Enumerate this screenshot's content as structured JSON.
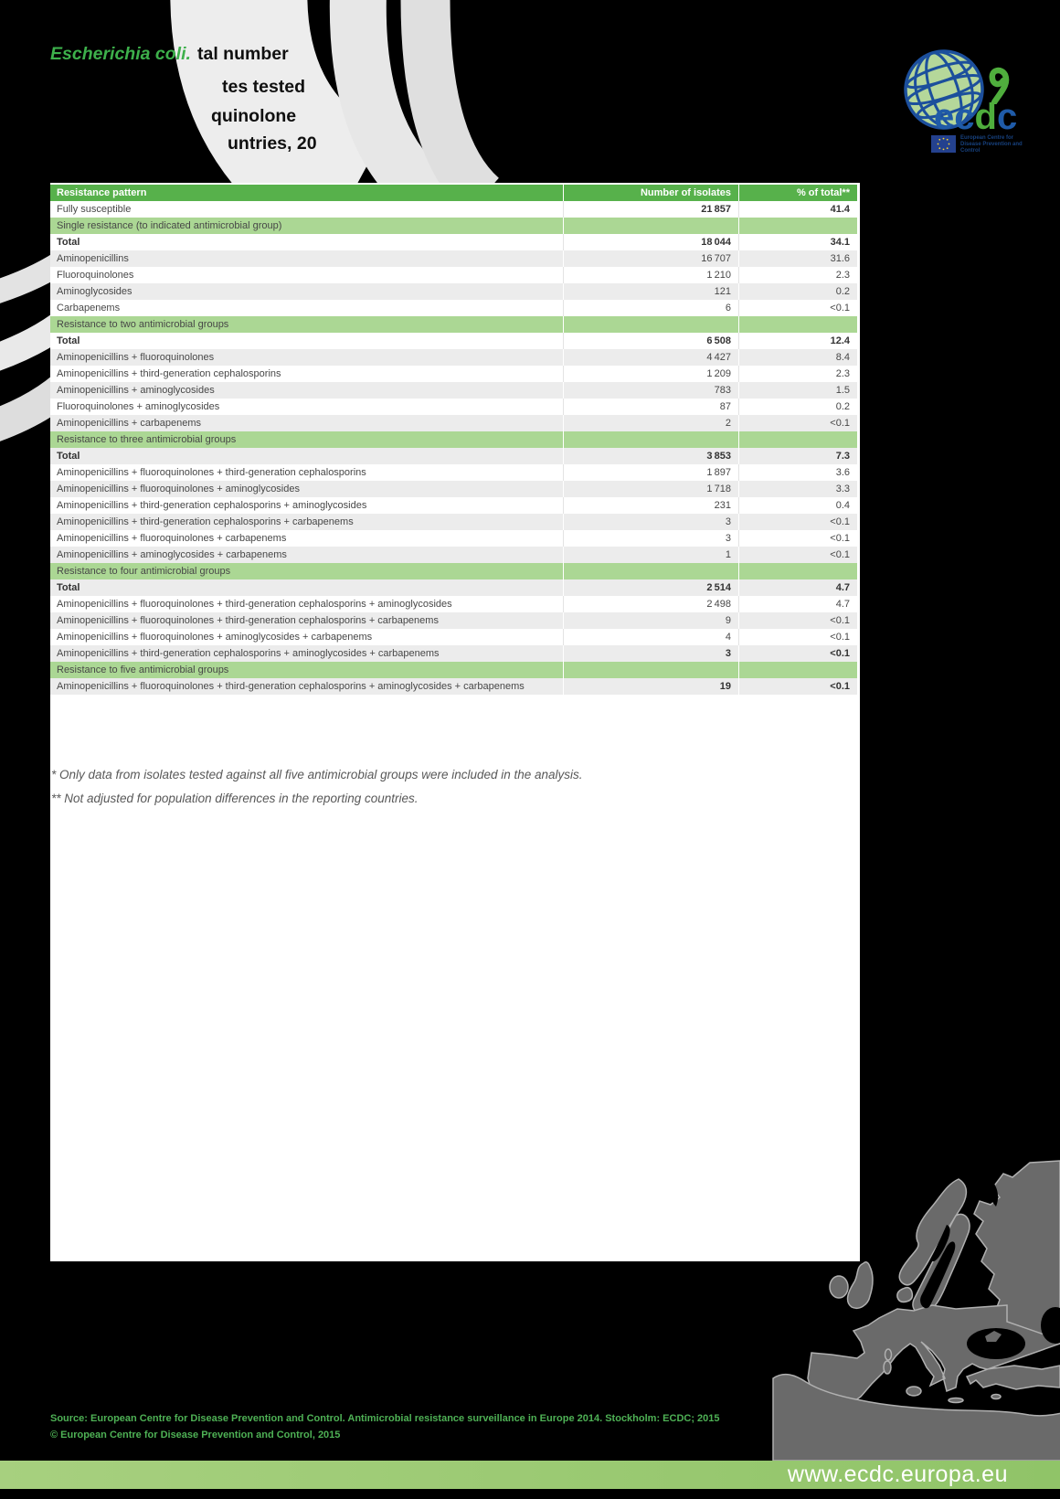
{
  "header": {
    "species_label": "Escherichia coli.",
    "title_fragments": [
      "tal number",
      "tes tested",
      "quinolone",
      "untries, 20"
    ],
    "logo": {
      "letters": [
        "e",
        "c",
        "d",
        "c"
      ],
      "caption": "European Centre for Disease Prevention and Control"
    }
  },
  "table": {
    "columns": [
      "Resistance pattern",
      "Number of isolates",
      "% of total**"
    ],
    "rows": [
      {
        "label": "Fully susceptible",
        "n": "21 857",
        "pct": "41.4",
        "bold_n": true
      },
      {
        "section": "Single resistance (to indicated antimicrobial group)"
      },
      {
        "label": "Total",
        "n": "18 044",
        "pct": "34.1",
        "bold": true
      },
      {
        "label": "Aminopenicillins",
        "n": "16 707",
        "pct": "31.6"
      },
      {
        "label": "Fluoroquinolones",
        "n": "1 210",
        "pct": "2.3"
      },
      {
        "label": "Aminoglycosides",
        "n": "121",
        "pct": "0.2"
      },
      {
        "label": "Carbapenems",
        "n": "6",
        "pct": "<0.1"
      },
      {
        "section": "Resistance to two antimicrobial groups"
      },
      {
        "label": "Total",
        "n": "6 508",
        "pct": "12.4",
        "bold": true
      },
      {
        "label": "Aminopenicillins + fluoroquinolones",
        "n": "4 427",
        "pct": "8.4"
      },
      {
        "label": "Aminopenicillins + third-generation cephalosporins",
        "n": "1 209",
        "pct": "2.3"
      },
      {
        "label": "Aminopenicillins + aminoglycosides",
        "n": "783",
        "pct": "1.5"
      },
      {
        "label": "Fluoroquinolones + aminoglycosides",
        "n": "87",
        "pct": "0.2"
      },
      {
        "label": "Aminopenicillins + carbapenems",
        "n": "2",
        "pct": "<0.1"
      },
      {
        "section": "Resistance to three antimicrobial groups"
      },
      {
        "label": "Total",
        "n": "3 853",
        "pct": "7.3",
        "bold": true
      },
      {
        "label": "Aminopenicillins + fluoroquinolones + third-generation cephalosporins",
        "n": "1 897",
        "pct": "3.6"
      },
      {
        "label": "Aminopenicillins + fluoroquinolones + aminoglycosides",
        "n": "1 718",
        "pct": "3.3"
      },
      {
        "label": "Aminopenicillins + third-generation cephalosporins + aminoglycosides",
        "n": "231",
        "pct": "0.4"
      },
      {
        "label": "Aminopenicillins + third-generation cephalosporins + carbapenems",
        "n": "3",
        "pct": "<0.1"
      },
      {
        "label": "Aminopenicillins + fluoroquinolones + carbapenems",
        "n": "3",
        "pct": "<0.1"
      },
      {
        "label": "Aminopenicillins + aminoglycosides + carbapenems",
        "n": "1",
        "pct": "<0.1"
      },
      {
        "section": "Resistance to four antimicrobial groups"
      },
      {
        "label": "Total",
        "n": "2 514",
        "pct": "4.7",
        "bold": true
      },
      {
        "label": "Aminopenicillins + fluoroquinolones + third-generation cephalosporins + aminoglycosides",
        "n": "2 498",
        "pct": "4.7"
      },
      {
        "label": "Aminopenicillins + fluoroquinolones + third-generation cephalosporins + carbapenems",
        "n": "9",
        "pct": "<0.1"
      },
      {
        "label": "Aminopenicillins + fluoroquinolones + aminoglycosides + carbapenems",
        "n": "4",
        "pct": "<0.1"
      },
      {
        "label": "Aminopenicillins + third-generation cephalosporins + aminoglycosides + carbapenems",
        "n": "3",
        "pct": "<0.1",
        "bold_n": true
      },
      {
        "section": "Resistance to five antimicrobial groups"
      },
      {
        "label": "Aminopenicillins + fluoroquinolones + third-generation cephalosporins + aminoglycosides + carbapenems",
        "n": "19",
        "pct": "<0.1",
        "bold_n": true
      }
    ]
  },
  "footnotes": [
    "* Only data from isolates tested against all five antimicrobial groups were included in the analysis.",
    "** Not adjusted for population differences in the reporting countries."
  ],
  "footer": {
    "source_line1": "Source: European Centre for Disease Prevention and Control. Antimicrobial resistance surveillance in Europe 2014. Stockholm: ECDC; 2015",
    "source_line2": "© European Centre for Disease Prevention and Control, 2015",
    "website": "www.ecdc.europa.eu"
  },
  "colors": {
    "header-green": "#57b14b",
    "section-green": "#abd794",
    "zebra": "#ececec",
    "species-green": "#3db04b",
    "source-green": "#4eb155",
    "bar1": "#a7d07f",
    "bar2": "#90c468",
    "map-gray": "#6a6a6a",
    "logo-blue": "#1f5ba8",
    "logo-green": "#4fae3d"
  }
}
